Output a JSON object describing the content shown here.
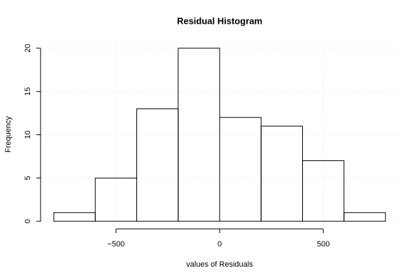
{
  "chart_data": {
    "type": "histogram",
    "title": "Residual Histogram",
    "x_label": "values of Residuals",
    "y_label": "Frequency",
    "bins": [
      -800,
      -600,
      -400,
      -200,
      0,
      200,
      400,
      600,
      800
    ],
    "values": [
      1,
      5,
      13,
      20,
      12,
      11,
      7,
      1
    ],
    "color": "#ffffff",
    "xlim": [
      -864,
      864
    ],
    "ylim": [
      -0.8,
      20.8
    ],
    "xticks": [
      {
        "value": -500,
        "label": "−500"
      },
      0,
      500
    ],
    "yticks": [
      0,
      5,
      10,
      15,
      20
    ],
    "grid": true
  }
}
